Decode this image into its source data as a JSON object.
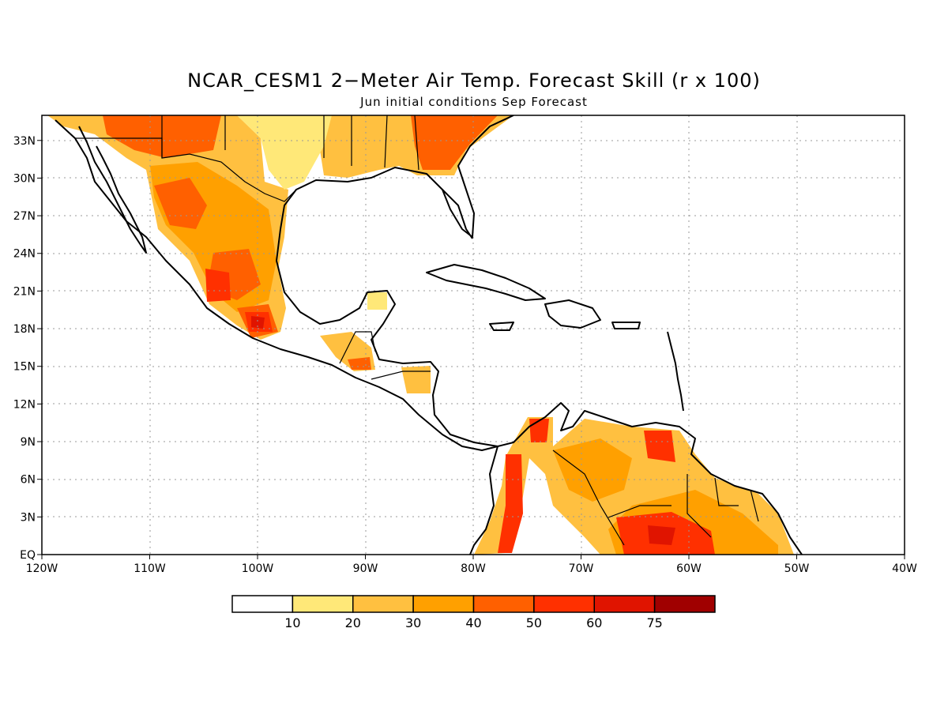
{
  "title": "NCAR_CESM1 2−Meter Air Temp. Forecast Skill (r x 100)",
  "subtitle": "Jun initial conditions  Sep Forecast",
  "lon_ticks": [
    "120W",
    "110W",
    "100W",
    "90W",
    "80W",
    "70W",
    "60W",
    "50W",
    "40W"
  ],
  "lat_ticks": [
    "EQ",
    "3N",
    "6N",
    "9N",
    "12N",
    "15N",
    "18N",
    "21N",
    "24N",
    "27N",
    "30N",
    "33N"
  ],
  "colorbar": {
    "colors": [
      "#ffffff",
      "#ffe878",
      "#ffc040",
      "#ffa000",
      "#ff6000",
      "#ff3000",
      "#e01400",
      "#a00000"
    ],
    "labels": [
      "10",
      "20",
      "30",
      "40",
      "50",
      "60",
      "75"
    ]
  },
  "map_extent": {
    "lon": [
      -120,
      -40
    ],
    "lat": [
      0,
      35
    ]
  }
}
